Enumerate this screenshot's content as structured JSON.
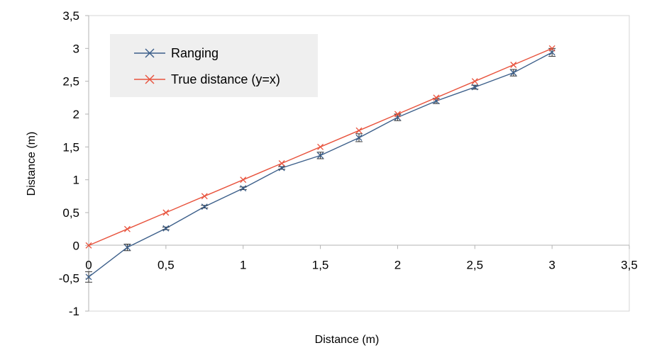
{
  "chart_data": {
    "type": "line",
    "xlabel": "Distance (m)",
    "ylabel": "Distance (m)",
    "xlim": [
      0,
      3.5
    ],
    "ylim": [
      -1,
      3.5
    ],
    "x_ticks": [
      "0",
      "0,5",
      "1",
      "1,5",
      "2",
      "2,5",
      "3",
      "3,5"
    ],
    "y_ticks": [
      "-1",
      "-0,5",
      "0",
      "0,5",
      "1",
      "1,5",
      "2",
      "2,5",
      "3",
      "3,5"
    ],
    "grid": false,
    "legend_position": "top-left",
    "series": [
      {
        "name": "Ranging",
        "color": "#3c5f8a",
        "marker": "x",
        "x": [
          0,
          0.25,
          0.5,
          0.75,
          1,
          1.25,
          1.5,
          1.75,
          2,
          2.25,
          2.5,
          2.75,
          3
        ],
        "y": [
          -0.48,
          -0.03,
          0.26,
          0.59,
          0.87,
          1.18,
          1.37,
          1.64,
          1.95,
          2.2,
          2.41,
          2.63,
          2.94
        ],
        "error": [
          0.08,
          0.05,
          0.02,
          0.02,
          0.02,
          0.02,
          0.05,
          0.06,
          0.05,
          0.04,
          0.03,
          0.05,
          0.06
        ]
      },
      {
        "name": "True distance (y=x)",
        "color": "#e8533d",
        "marker": "x",
        "x": [
          0,
          0.25,
          0.5,
          0.75,
          1,
          1.25,
          1.5,
          1.75,
          2,
          2.25,
          2.5,
          2.75,
          3
        ],
        "y": [
          0,
          0.25,
          0.5,
          0.75,
          1,
          1.25,
          1.5,
          1.75,
          2,
          2.25,
          2.5,
          2.75,
          3
        ]
      }
    ]
  }
}
